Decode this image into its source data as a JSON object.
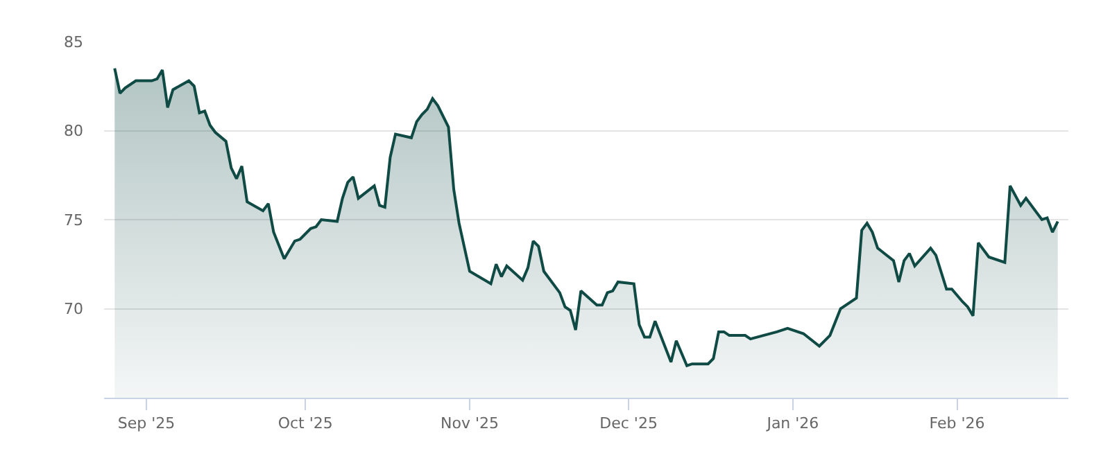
{
  "chart_data": {
    "type": "area",
    "grid": "y",
    "line_style": "solid",
    "marker": "none",
    "xlim": [
      "2025-08-24",
      "2026-02-22"
    ],
    "xticks": [
      {
        "value": "2025-09-01",
        "label": "Sep '25"
      },
      {
        "value": "2025-10-01",
        "label": "Oct '25"
      },
      {
        "value": "2025-11-01",
        "label": "Nov '25"
      },
      {
        "value": "2025-12-01",
        "label": "Dec '25"
      },
      {
        "value": "2026-01-01",
        "label": "Jan '26"
      },
      {
        "value": "2026-02-01",
        "label": "Feb '26"
      }
    ],
    "ylim": [
      65,
      85
    ],
    "yticks": [
      70,
      75,
      80,
      85
    ],
    "x": [
      "2025-08-26",
      "2025-08-27",
      "2025-08-28",
      "2025-08-30",
      "2025-09-02",
      "2025-09-03",
      "2025-09-04",
      "2025-09-05",
      "2025-09-06",
      "2025-09-09",
      "2025-09-10",
      "2025-09-11",
      "2025-09-12",
      "2025-09-13",
      "2025-09-14",
      "2025-09-16",
      "2025-09-17",
      "2025-09-18",
      "2025-09-19",
      "2025-09-20",
      "2025-09-23",
      "2025-09-24",
      "2025-09-25",
      "2025-09-27",
      "2025-09-29",
      "2025-09-30",
      "2025-10-02",
      "2025-10-03",
      "2025-10-04",
      "2025-10-07",
      "2025-10-08",
      "2025-10-09",
      "2025-10-10",
      "2025-10-11",
      "2025-10-14",
      "2025-10-15",
      "2025-10-16",
      "2025-10-17",
      "2025-10-18",
      "2025-10-21",
      "2025-10-22",
      "2025-10-23",
      "2025-10-24",
      "2025-10-25",
      "2025-10-26",
      "2025-10-28",
      "2025-10-29",
      "2025-10-30",
      "2025-11-01",
      "2025-11-05",
      "2025-11-06",
      "2025-11-07",
      "2025-11-08",
      "2025-11-11",
      "2025-11-12",
      "2025-11-13",
      "2025-11-14",
      "2025-11-15",
      "2025-11-18",
      "2025-11-19",
      "2025-11-20",
      "2025-11-21",
      "2025-11-22",
      "2025-11-25",
      "2025-11-26",
      "2025-11-27",
      "2025-11-28",
      "2025-11-29",
      "2025-12-02",
      "2025-12-03",
      "2025-12-04",
      "2025-12-05",
      "2025-12-06",
      "2025-12-09",
      "2025-12-10",
      "2025-12-12",
      "2025-12-13",
      "2025-12-16",
      "2025-12-17",
      "2025-12-18",
      "2025-12-19",
      "2025-12-20",
      "2025-12-23",
      "2025-12-24",
      "2025-12-29",
      "2025-12-31",
      "2026-01-03",
      "2026-01-06",
      "2026-01-08",
      "2026-01-10",
      "2026-01-13",
      "2026-01-14",
      "2026-01-15",
      "2026-01-16",
      "2026-01-17",
      "2026-01-20",
      "2026-01-21",
      "2026-01-22",
      "2026-01-23",
      "2026-01-24",
      "2026-01-27",
      "2026-01-28",
      "2026-01-30",
      "2026-01-31",
      "2026-02-02",
      "2026-02-03",
      "2026-02-04",
      "2026-02-05",
      "2026-02-07",
      "2026-02-10",
      "2026-02-11",
      "2026-02-13",
      "2026-02-14",
      "2026-02-17",
      "2026-02-18",
      "2026-02-19",
      "2026-02-20"
    ],
    "series": [
      {
        "color": "#0f4a44",
        "values": [
          83.5,
          82.1,
          82.4,
          82.8,
          82.8,
          82.9,
          83.4,
          81.3,
          82.3,
          82.8,
          82.5,
          81.0,
          81.1,
          80.3,
          79.9,
          79.4,
          77.9,
          77.3,
          78.0,
          76.0,
          75.5,
          75.9,
          74.3,
          72.8,
          73.8,
          73.9,
          74.5,
          74.6,
          75.0,
          74.9,
          76.2,
          77.1,
          77.4,
          76.2,
          76.9,
          75.8,
          75.7,
          78.5,
          79.8,
          79.6,
          80.5,
          80.9,
          81.2,
          81.8,
          81.4,
          80.2,
          76.7,
          74.8,
          72.1,
          71.4,
          72.5,
          71.8,
          72.4,
          71.6,
          72.3,
          73.8,
          73.5,
          72.1,
          70.9,
          70.1,
          69.9,
          68.8,
          71.0,
          70.2,
          70.2,
          70.9,
          71.0,
          71.5,
          71.4,
          69.1,
          68.4,
          68.4,
          69.3,
          67.0,
          68.2,
          66.8,
          66.9,
          66.9,
          67.2,
          68.7,
          68.7,
          68.5,
          68.5,
          68.3,
          68.7,
          68.9,
          68.6,
          67.9,
          68.5,
          70.0,
          70.6,
          74.4,
          74.8,
          74.3,
          73.4,
          72.7,
          71.5,
          72.7,
          73.1,
          72.4,
          73.4,
          73.0,
          71.1,
          71.1,
          70.4,
          70.1,
          69.6,
          73.7,
          72.9,
          72.6,
          76.9,
          75.8,
          76.2,
          75.0,
          75.1,
          74.3,
          74.9
        ]
      }
    ]
  }
}
